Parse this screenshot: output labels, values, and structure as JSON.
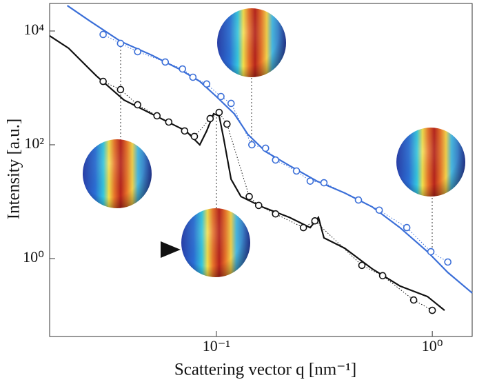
{
  "chart_data": {
    "type": "line",
    "xlabel": "Scattering vector q [nm⁻¹]",
    "ylabel": "Intensity [a.u.]",
    "xscale": "log",
    "yscale": "log",
    "xlim": [
      0.0169,
      1.53
    ],
    "ylim": [
      0.0427,
      30500
    ],
    "xticks": [
      {
        "value": 0.1,
        "label": "10⁻¹"
      },
      {
        "value": 1,
        "label": "10⁰"
      }
    ],
    "yticks": [
      {
        "value": 1,
        "label": "10⁰"
      },
      {
        "value": 100,
        "label": "10²"
      },
      {
        "value": 10000,
        "label": "10⁴"
      }
    ],
    "series": [
      {
        "color": "#3b6fd8",
        "line_style": "solid",
        "marker": "none",
        "x": [
          0.0204,
          0.0258,
          0.036,
          0.0501,
          0.0672,
          0.0838,
          0.1,
          0.121,
          0.14,
          0.169,
          0.218,
          0.292,
          0.393,
          0.527,
          0.708,
          0.95,
          1.18,
          1.53
        ],
        "values": [
          28000,
          15200,
          6580,
          3770,
          2150,
          1300,
          705,
          351,
          152,
          76,
          43,
          23,
          14.2,
          8.1,
          3.5,
          1.32,
          0.57,
          0.248
        ]
      },
      {
        "color": "#111111",
        "line_style": "solid",
        "marker": "none",
        "x": [
          0.0169,
          0.0207,
          0.0278,
          0.0373,
          0.0539,
          0.0723,
          0.0838,
          0.0902,
          0.0971,
          0.103,
          0.108,
          0.117,
          0.13,
          0.163,
          0.218,
          0.272,
          0.297,
          0.315,
          0.393,
          0.527,
          0.708,
          0.95,
          1.14
        ],
        "values": [
          8230,
          4980,
          1630,
          614,
          305,
          175,
          100,
          175,
          351,
          323,
          132,
          24.8,
          12.3,
          8.1,
          5.3,
          3.5,
          5.3,
          2.31,
          1.52,
          0.66,
          0.33,
          0.215,
          0.123
        ]
      },
      {
        "color": "#3b6fd8",
        "line_style": "dotted",
        "marker": "circle",
        "x": [
          0.0299,
          0.036,
          0.0432,
          0.058,
          0.0697,
          0.0779,
          0.0902,
          0.105,
          0.117,
          0.146,
          0.169,
          0.188,
          0.235,
          0.272,
          0.315,
          0.455,
          0.568,
          0.762,
          0.985,
          1.18
        ],
        "values": [
          8700,
          6050,
          4330,
          2850,
          2150,
          1540,
          1170,
          705,
          534,
          100,
          87,
          54,
          34.6,
          23,
          21.5,
          10.7,
          7.1,
          3.5,
          1.32,
          0.87
        ]
      },
      {
        "color": "#111111",
        "line_style": "dotted",
        "marker": "circle",
        "x": [
          0.0299,
          0.036,
          0.0432,
          0.0531,
          0.0602,
          0.0713,
          0.0791,
          0.0936,
          0.103,
          0.112,
          0.142,
          0.157,
          0.188,
          0.253,
          0.286,
          0.472,
          0.589,
          0.82,
          1.0
        ],
        "values": [
          1300,
          933,
          505,
          323,
          251,
          175,
          140,
          289,
          371,
          231,
          12.3,
          8.6,
          6.1,
          3.5,
          4.6,
          0.76,
          0.5,
          0.187,
          0.123
        ]
      }
    ]
  }
}
